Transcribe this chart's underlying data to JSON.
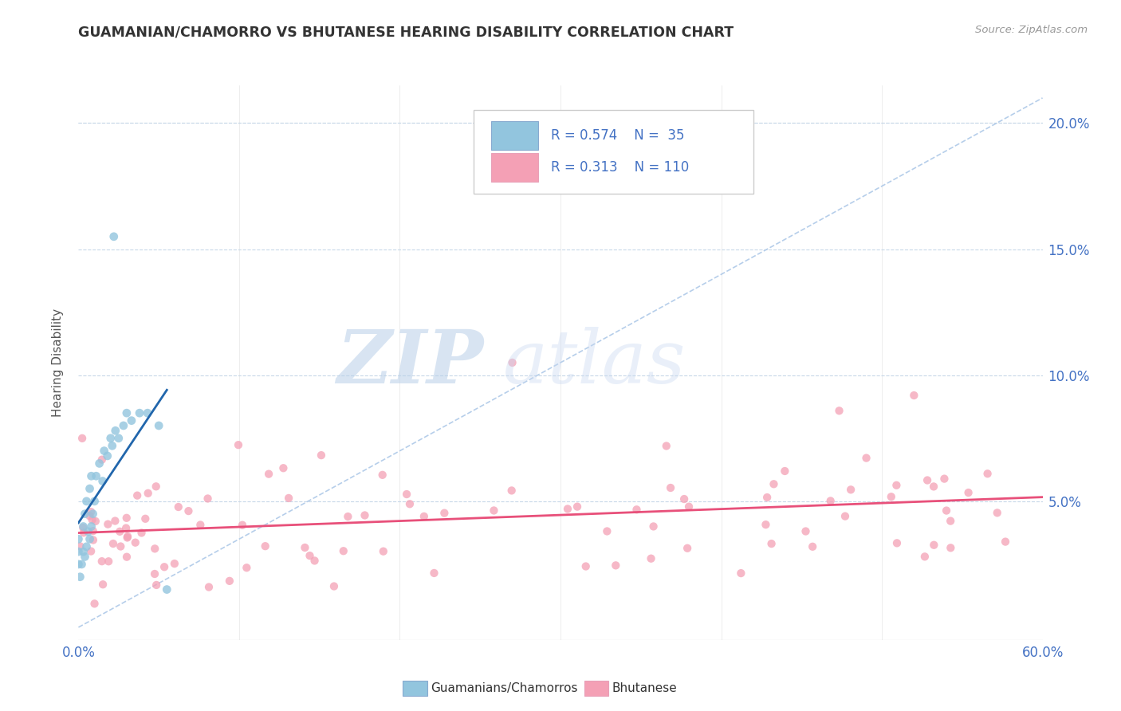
{
  "title": "GUAMANIAN/CHAMORRO VS BHUTANESE HEARING DISABILITY CORRELATION CHART",
  "source": "Source: ZipAtlas.com",
  "ylabel": "Hearing Disability",
  "ytick_labels": [
    "5.0%",
    "10.0%",
    "15.0%",
    "20.0%"
  ],
  "ytick_values": [
    0.05,
    0.1,
    0.15,
    0.2
  ],
  "xlim": [
    0.0,
    0.6
  ],
  "ylim": [
    -0.005,
    0.215
  ],
  "color_guam": "#92c5de",
  "color_bhut": "#f4a0b5",
  "line_color_guam": "#2166ac",
  "line_color_bhut": "#e8507a",
  "diagonal_color": "#aec9e8",
  "background_color": "#ffffff",
  "grid_color": "#c8d8e8",
  "watermark_zip": "ZIP",
  "watermark_atlas": "atlas",
  "legend_r1": "R = 0.574",
  "legend_n1": "N =  35",
  "legend_r2": "R = 0.313",
  "legend_n2": "N = 110",
  "bottom_label1": "Guamanians/Chamorros",
  "bottom_label2": "Bhutanese"
}
